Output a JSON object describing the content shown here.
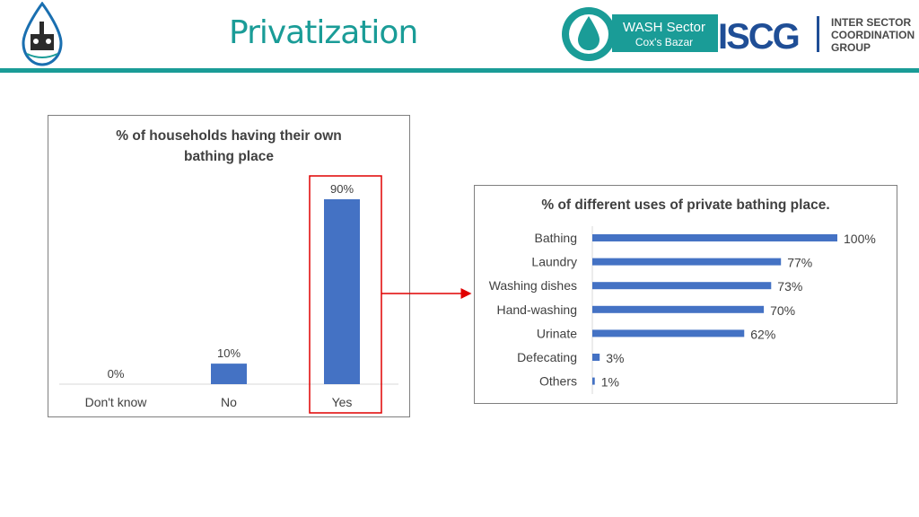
{
  "header": {
    "title": "Privatization",
    "wash_logo_line1": "WASH Sector",
    "wash_logo_line2": "Cox's Bazar",
    "iscg_logo": "ISCG",
    "iscg_text": [
      "INTER SECTOR",
      "COORDINATION",
      "GROUP"
    ]
  },
  "colors": {
    "teal": "#1a9c97",
    "bar": "#4472c4",
    "highlight": "#e00000",
    "iscg_blue": "#1f4e96"
  },
  "chart_data": [
    {
      "type": "bar",
      "title": "% of households having their own bathing place",
      "title_lines": [
        "% of households having their own",
        "bathing place"
      ],
      "categories": [
        "Don't know",
        "No",
        "Yes"
      ],
      "values": [
        0,
        10,
        90
      ],
      "data_labels": [
        "0%",
        "10%",
        "90%"
      ],
      "ylim": [
        0,
        100
      ],
      "grid": false,
      "highlight_category": "Yes"
    },
    {
      "type": "bar",
      "orientation": "horizontal",
      "title": "% of different uses of private bathing place.",
      "categories": [
        "Bathing",
        "Laundry",
        "Washing dishes",
        "Hand-washing",
        "Urinate",
        "Defecating",
        "Others"
      ],
      "values": [
        100,
        77,
        73,
        70,
        62,
        3,
        1
      ],
      "data_labels": [
        "100%",
        "77%",
        "73%",
        "70%",
        "62%",
        "3%",
        "1%"
      ],
      "xlim": [
        0,
        100
      ],
      "grid": false
    }
  ]
}
